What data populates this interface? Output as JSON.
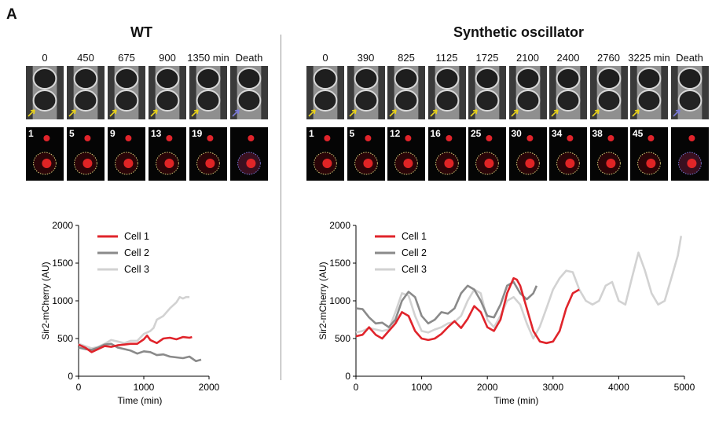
{
  "panel_label": "A",
  "wt": {
    "title": "WT",
    "timepoints": [
      "0",
      "450",
      "675",
      "900",
      "1350 min",
      "Death"
    ],
    "fluor_numbers": [
      "1",
      "5",
      "9",
      "13",
      "19",
      ""
    ]
  },
  "osc": {
    "title": "Synthetic oscillator",
    "timepoints": [
      "0",
      "390",
      "825",
      "1125",
      "1725",
      "2100",
      "2400",
      "2760",
      "3225 min",
      "Death"
    ],
    "fluor_numbers": [
      "1",
      "5",
      "12",
      "16",
      "25",
      "30",
      "34",
      "38",
      "45",
      ""
    ]
  },
  "colors": {
    "cell1": "#e0242b",
    "cell2": "#8a8a8a",
    "cell3": "#d2d2d2",
    "arrow": "#e8d21a",
    "outline": "#d8cf7a",
    "death_outline": "#7a7ad8"
  },
  "chart_data": [
    {
      "type": "line",
      "xlabel": "Time (min)",
      "ylabel": "Sir2-mCherry (AU)",
      "xlim": [
        0,
        2000
      ],
      "ylim": [
        0,
        2000
      ],
      "xticks": [
        0,
        1000,
        2000
      ],
      "yticks": [
        0,
        500,
        1000,
        1500,
        2000
      ],
      "legend": "top-left",
      "series": [
        {
          "name": "Cell 1",
          "color": "#e0242b",
          "x": [
            0,
            100,
            200,
            300,
            400,
            500,
            600,
            700,
            800,
            900,
            1000,
            1050,
            1100,
            1200,
            1300,
            1400,
            1500,
            1600,
            1700,
            1740
          ],
          "y": [
            420,
            380,
            320,
            360,
            400,
            390,
            410,
            420,
            430,
            430,
            490,
            540,
            480,
            440,
            500,
            510,
            490,
            520,
            510,
            520
          ]
        },
        {
          "name": "Cell 2",
          "color": "#8a8a8a",
          "x": [
            0,
            100,
            200,
            300,
            400,
            500,
            600,
            700,
            800,
            900,
            1000,
            1100,
            1200,
            1300,
            1400,
            1500,
            1600,
            1700,
            1800,
            1880
          ],
          "y": [
            380,
            360,
            350,
            380,
            420,
            430,
            380,
            360,
            340,
            300,
            330,
            320,
            280,
            290,
            260,
            250,
            240,
            260,
            200,
            220
          ]
        },
        {
          "name": "Cell 3",
          "color": "#d2d2d2",
          "x": [
            0,
            100,
            200,
            300,
            400,
            500,
            600,
            700,
            800,
            900,
            1000,
            1100,
            1150,
            1200,
            1300,
            1400,
            1500,
            1550,
            1600,
            1650,
            1700
          ],
          "y": [
            430,
            400,
            370,
            390,
            430,
            480,
            460,
            440,
            470,
            470,
            560,
            600,
            640,
            750,
            800,
            900,
            980,
            1050,
            1030,
            1050,
            1050
          ]
        }
      ]
    },
    {
      "type": "line",
      "xlabel": "Time (min)",
      "ylabel": "Sir2-mCherry (AU)",
      "xlim": [
        0,
        5000
      ],
      "ylim": [
        0,
        2000
      ],
      "xticks": [
        0,
        1000,
        2000,
        3000,
        4000,
        5000
      ],
      "yticks": [
        0,
        500,
        1000,
        1500,
        2000
      ],
      "legend": "top-left",
      "series": [
        {
          "name": "Cell 1",
          "color": "#e0242b",
          "x": [
            0,
            100,
            200,
            300,
            400,
            500,
            600,
            700,
            800,
            900,
            1000,
            1100,
            1200,
            1300,
            1400,
            1500,
            1600,
            1700,
            1800,
            1900,
            2000,
            2100,
            2200,
            2300,
            2400,
            2450,
            2500,
            2600,
            2700,
            2800,
            2900,
            3000,
            3100,
            3200,
            3300,
            3400
          ],
          "y": [
            530,
            550,
            650,
            550,
            500,
            600,
            700,
            850,
            800,
            600,
            500,
            480,
            500,
            560,
            650,
            730,
            640,
            760,
            930,
            850,
            650,
            600,
            750,
            1100,
            1300,
            1280,
            1200,
            900,
            600,
            460,
            440,
            460,
            600,
            900,
            1100,
            1150
          ]
        },
        {
          "name": "Cell 2",
          "color": "#8a8a8a",
          "x": [
            0,
            100,
            200,
            300,
            400,
            500,
            600,
            700,
            800,
            900,
            1000,
            1100,
            1200,
            1300,
            1400,
            1500,
            1600,
            1700,
            1800,
            1900,
            2000,
            2100,
            2200,
            2300,
            2400,
            2500,
            2600,
            2700,
            2750
          ],
          "y": [
            900,
            890,
            780,
            700,
            710,
            650,
            750,
            1000,
            1120,
            1050,
            800,
            700,
            750,
            850,
            830,
            900,
            1100,
            1200,
            1150,
            1000,
            800,
            780,
            950,
            1200,
            1250,
            1100,
            1020,
            1100,
            1200
          ]
        },
        {
          "name": "Cell 3",
          "color": "#d2d2d2",
          "x": [
            0,
            100,
            200,
            300,
            400,
            500,
            600,
            700,
            800,
            900,
            1000,
            1100,
            1200,
            1300,
            1400,
            1500,
            1600,
            1700,
            1800,
            1900,
            2000,
            2100,
            2200,
            2300,
            2400,
            2500,
            2600,
            2700,
            2800,
            2900,
            3000,
            3100,
            3200,
            3300,
            3400,
            3500,
            3600,
            3700,
            3800,
            3900,
            4000,
            4100,
            4200,
            4300,
            4400,
            4500,
            4600,
            4700,
            4800,
            4900,
            4950
          ],
          "y": [
            580,
            600,
            640,
            620,
            600,
            620,
            850,
            1100,
            1070,
            800,
            600,
            580,
            620,
            650,
            700,
            720,
            800,
            1000,
            1150,
            1100,
            750,
            650,
            800,
            1000,
            1050,
            950,
            700,
            500,
            660,
            900,
            1150,
            1300,
            1400,
            1380,
            1150,
            1000,
            950,
            1000,
            1200,
            1250,
            1000,
            950,
            1300,
            1640,
            1400,
            1100,
            950,
            1000,
            1300,
            1600,
            1860
          ]
        }
      ]
    }
  ]
}
